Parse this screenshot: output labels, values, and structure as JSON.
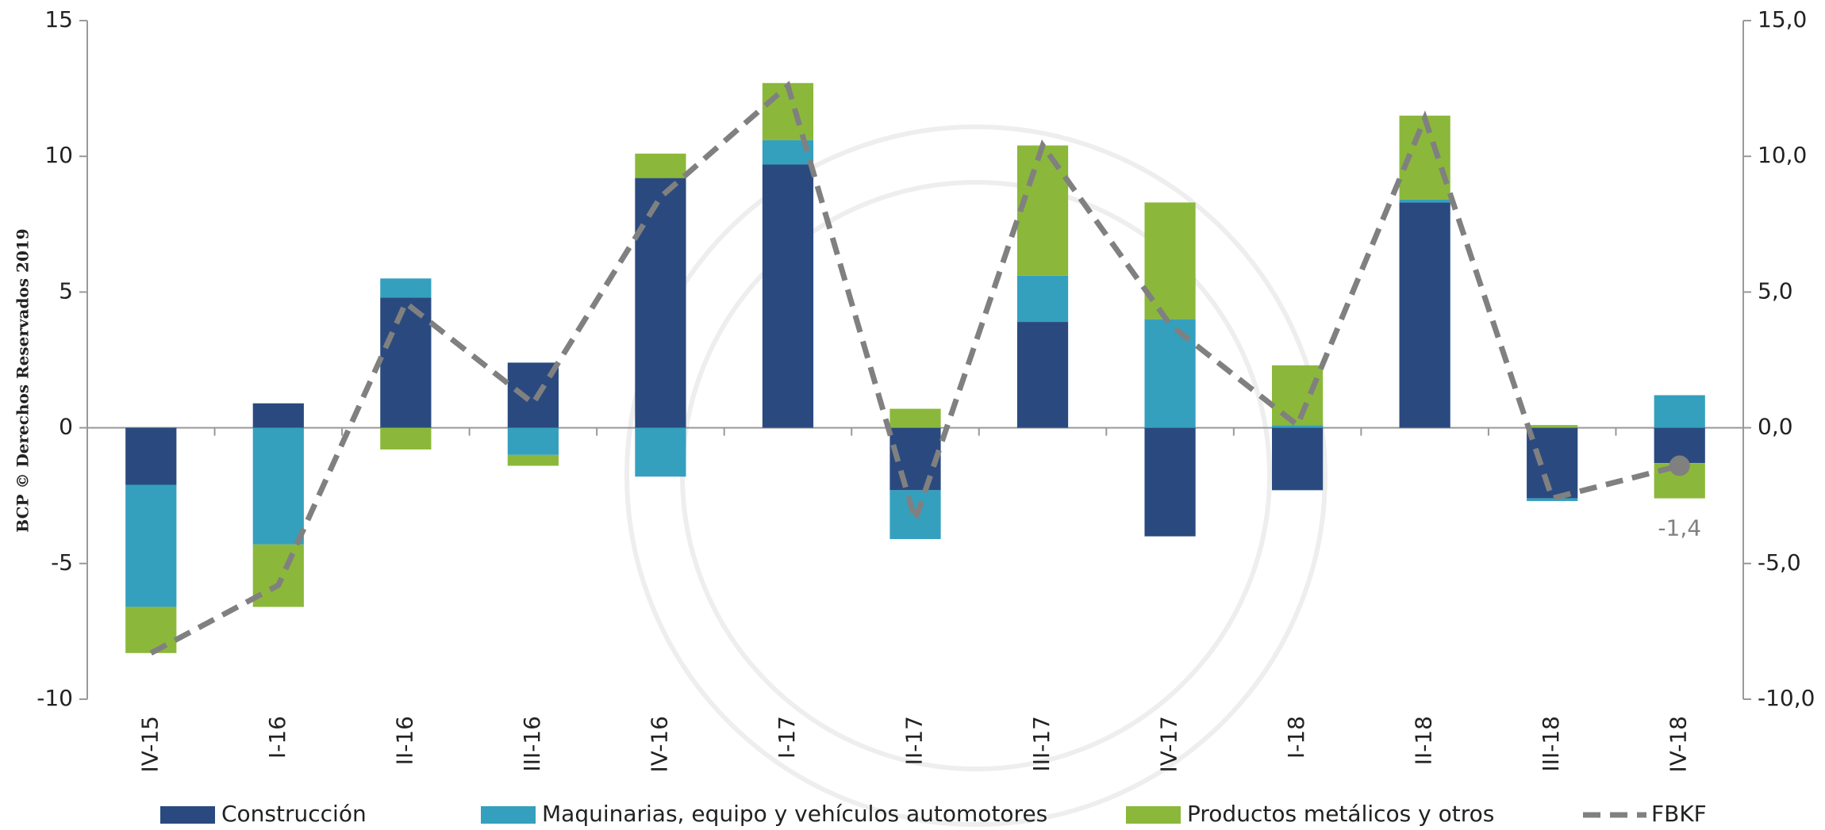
{
  "chart_data": {
    "type": "bar",
    "watermark": "BCP © Derechos Reservados 2019",
    "categories": [
      "IV-15",
      "I-16",
      "II-16",
      "III-16",
      "IV-16",
      "I-17",
      "II-17",
      "III-17",
      "IV-17",
      "I-18",
      "II-18",
      "III-18",
      "IV-18"
    ],
    "series": [
      {
        "name": "Construcción",
        "color": "#2a4a7f",
        "values": [
          -2.1,
          0.9,
          4.8,
          2.4,
          9.2,
          9.7,
          -2.3,
          3.9,
          -4.0,
          -2.3,
          8.3,
          -2.6,
          -1.3
        ]
      },
      {
        "name": "Maquinarias, equipo y vehículos automotores",
        "color": "#34a0be",
        "values": [
          -4.5,
          -4.3,
          0.7,
          -1.0,
          -1.8,
          0.9,
          -1.8,
          1.7,
          4.0,
          0.1,
          0.1,
          -0.1,
          1.2
        ]
      },
      {
        "name": "Productos metálicos y otros",
        "color": "#8bb83a",
        "values": [
          -1.7,
          -2.3,
          -0.8,
          -0.4,
          0.9,
          2.1,
          0.7,
          4.8,
          4.3,
          2.2,
          3.1,
          0.1,
          -1.3
        ]
      },
      {
        "name": "FBKF",
        "color": "#808080",
        "type": "line",
        "axis": "y2",
        "dashed": true,
        "values": [
          -8.3,
          -5.8,
          4.6,
          0.9,
          8.5,
          12.6,
          -3.4,
          10.4,
          3.8,
          0.1,
          11.4,
          -2.6,
          -1.4
        ],
        "value_labels": [
          null,
          null,
          null,
          null,
          null,
          null,
          null,
          null,
          null,
          null,
          null,
          null,
          "-1,4"
        ]
      }
    ],
    "ylim": [
      -10,
      15
    ],
    "yticks": [
      -10,
      -5,
      0,
      5,
      10,
      15
    ],
    "y2lim": [
      -10,
      15
    ],
    "y2ticks": [
      {
        "value": -10,
        "label": "-10,0"
      },
      {
        "value": -5,
        "label": "-5,0"
      },
      {
        "value": 0,
        "label": "0,0"
      },
      {
        "value": 5,
        "label": "5,0"
      },
      {
        "value": 10,
        "label": "10,0"
      },
      {
        "value": 15,
        "label": "15,0"
      }
    ],
    "legend": "bottom"
  }
}
